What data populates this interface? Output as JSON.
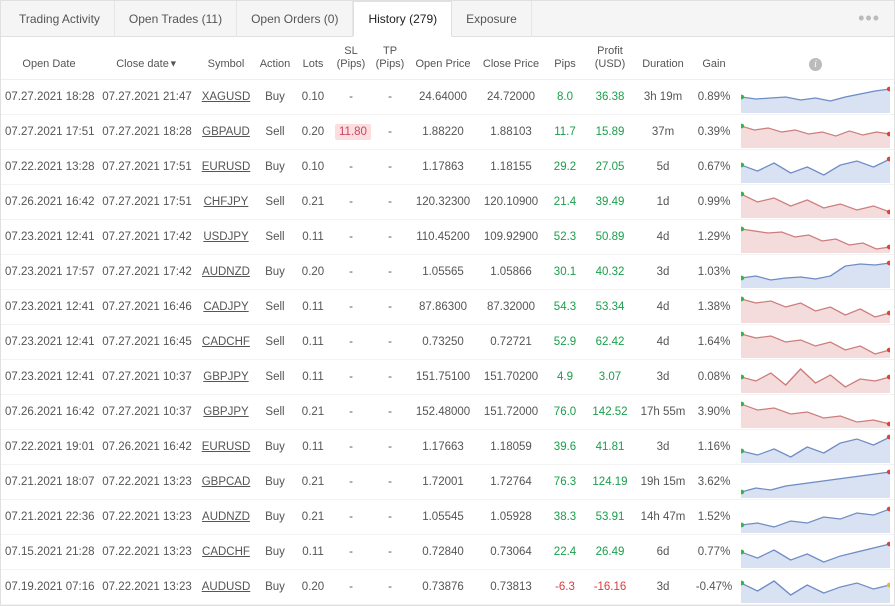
{
  "tabs": {
    "items": [
      {
        "label": "Trading Activity",
        "active": false
      },
      {
        "label": "Open Trades (11)",
        "active": false
      },
      {
        "label": "Open Orders (0)",
        "active": false
      },
      {
        "label": "History (279)",
        "active": true
      },
      {
        "label": "Exposure",
        "active": false
      }
    ]
  },
  "columns": {
    "open_date": "Open Date",
    "close_date": "Close date",
    "symbol": "Symbol",
    "action": "Action",
    "lots": "Lots",
    "sl": "SL\n(Pips)",
    "tp": "TP\n(Pips)",
    "open_price": "Open Price",
    "close_price": "Close Price",
    "pips": "Pips",
    "profit": "Profit\n(USD)",
    "duration": "Duration",
    "gain": "Gain",
    "sort_col": "close_date",
    "sort_dir": "desc"
  },
  "colors": {
    "positive": "#1a9e4b",
    "negative": "#d93c3c",
    "spark_buy_fill": "#d9e2f3",
    "spark_buy_stroke": "#6f8cc4",
    "spark_sell_fill": "#f5dcdc",
    "spark_sell_stroke": "#cc7d7d",
    "marker_open": "#35b54a",
    "marker_close": "#d8463a",
    "marker_close_neg": "#e0b54a",
    "sl_bad_bg": "#fcdede"
  },
  "rows": [
    {
      "open_date": "07.27.2021 18:28",
      "close_date": "07.27.2021 21:47",
      "symbol": "XAGUSD",
      "action": "Buy",
      "lots": "0.10",
      "sl": "-",
      "tp": "-",
      "open_price": "24.64000",
      "close_price": "24.72000",
      "pips": "8.0",
      "profit": "36.38",
      "duration": "3h 19m",
      "gain": "0.89%",
      "pips_pos": true,
      "profit_pos": true,
      "spark": [
        14,
        16,
        15,
        14,
        17,
        15,
        18,
        14,
        11,
        8,
        6
      ]
    },
    {
      "open_date": "07.27.2021 17:51",
      "close_date": "07.27.2021 18:28",
      "symbol": "GBPAUD",
      "action": "Sell",
      "lots": "0.20",
      "sl": "11.80",
      "sl_bad": true,
      "tp": "-",
      "open_price": "1.88220",
      "close_price": "1.88103",
      "pips": "11.7",
      "profit": "15.89",
      "duration": "37m",
      "gain": "0.39%",
      "pips_pos": true,
      "profit_pos": true,
      "spark": [
        8,
        12,
        10,
        14,
        12,
        16,
        14,
        18,
        13,
        17,
        14,
        16
      ]
    },
    {
      "open_date": "07.22.2021 13:28",
      "close_date": "07.27.2021 17:51",
      "symbol": "EURUSD",
      "action": "Buy",
      "lots": "0.10",
      "sl": "-",
      "tp": "-",
      "open_price": "1.17863",
      "close_price": "1.18155",
      "pips": "29.2",
      "profit": "27.05",
      "duration": "5d",
      "gain": "0.67%",
      "pips_pos": true,
      "profit_pos": true,
      "spark": [
        12,
        18,
        10,
        20,
        14,
        22,
        12,
        8,
        14,
        6
      ]
    },
    {
      "open_date": "07.26.2021 16:42",
      "close_date": "07.27.2021 17:51",
      "symbol": "CHFJPY",
      "action": "Sell",
      "lots": "0.21",
      "sl": "-",
      "tp": "-",
      "open_price": "120.32300",
      "close_price": "120.10900",
      "pips": "21.4",
      "profit": "39.49",
      "duration": "1d",
      "gain": "0.99%",
      "pips_pos": true,
      "profit_pos": true,
      "spark": [
        6,
        14,
        10,
        18,
        12,
        20,
        16,
        22,
        18,
        24
      ]
    },
    {
      "open_date": "07.23.2021 12:41",
      "close_date": "07.27.2021 17:42",
      "symbol": "USDJPY",
      "action": "Sell",
      "lots": "0.11",
      "sl": "-",
      "tp": "-",
      "open_price": "110.45200",
      "close_price": "109.92900",
      "pips": "52.3",
      "profit": "50.89",
      "duration": "4d",
      "gain": "1.29%",
      "pips_pos": true,
      "profit_pos": true,
      "spark": [
        6,
        8,
        10,
        9,
        14,
        12,
        18,
        16,
        22,
        20,
        26,
        24
      ]
    },
    {
      "open_date": "07.23.2021 17:57",
      "close_date": "07.27.2021 17:42",
      "symbol": "AUDNZD",
      "action": "Buy",
      "lots": "0.20",
      "sl": "-",
      "tp": "-",
      "open_price": "1.05565",
      "close_price": "1.05866",
      "pips": "30.1",
      "profit": "40.32",
      "duration": "3d",
      "gain": "1.03%",
      "pips_pos": true,
      "profit_pos": true,
      "spark": [
        20,
        18,
        22,
        20,
        19,
        21,
        18,
        8,
        6,
        7,
        5
      ]
    },
    {
      "open_date": "07.23.2021 12:41",
      "close_date": "07.27.2021 16:46",
      "symbol": "CADJPY",
      "action": "Sell",
      "lots": "0.11",
      "sl": "-",
      "tp": "-",
      "open_price": "87.86300",
      "close_price": "87.32000",
      "pips": "54.3",
      "profit": "53.34",
      "duration": "4d",
      "gain": "1.38%",
      "pips_pos": true,
      "profit_pos": true,
      "spark": [
        6,
        10,
        8,
        14,
        10,
        18,
        14,
        22,
        16,
        24,
        20
      ]
    },
    {
      "open_date": "07.23.2021 12:41",
      "close_date": "07.27.2021 16:45",
      "symbol": "CADCHF",
      "action": "Sell",
      "lots": "0.11",
      "sl": "-",
      "tp": "-",
      "open_price": "0.73250",
      "close_price": "0.72721",
      "pips": "52.9",
      "profit": "62.42",
      "duration": "4d",
      "gain": "1.64%",
      "pips_pos": true,
      "profit_pos": true,
      "spark": [
        6,
        10,
        8,
        14,
        12,
        18,
        14,
        22,
        18,
        26,
        22
      ]
    },
    {
      "open_date": "07.23.2021 12:41",
      "close_date": "07.27.2021 10:37",
      "symbol": "GBPJPY",
      "action": "Sell",
      "lots": "0.11",
      "sl": "-",
      "tp": "-",
      "open_price": "151.75100",
      "close_price": "151.70200",
      "pips": "4.9",
      "profit": "3.07",
      "duration": "3d",
      "gain": "0.08%",
      "pips_pos": true,
      "profit_pos": true,
      "spark": [
        14,
        18,
        10,
        22,
        6,
        20,
        12,
        24,
        16,
        18,
        14
      ]
    },
    {
      "open_date": "07.26.2021 16:42",
      "close_date": "07.27.2021 10:37",
      "symbol": "GBPJPY",
      "action": "Sell",
      "lots": "0.21",
      "sl": "-",
      "tp": "-",
      "open_price": "152.48000",
      "close_price": "151.72000",
      "pips": "76.0",
      "profit": "142.52",
      "duration": "17h 55m",
      "gain": "3.90%",
      "pips_pos": true,
      "profit_pos": true,
      "spark": [
        6,
        12,
        10,
        16,
        14,
        20,
        18,
        24,
        22,
        26
      ]
    },
    {
      "open_date": "07.22.2021 19:01",
      "close_date": "07.26.2021 16:42",
      "symbol": "EURUSD",
      "action": "Buy",
      "lots": "0.11",
      "sl": "-",
      "tp": "-",
      "open_price": "1.17663",
      "close_price": "1.18059",
      "pips": "39.6",
      "profit": "41.81",
      "duration": "3d",
      "gain": "1.16%",
      "pips_pos": true,
      "profit_pos": true,
      "spark": [
        18,
        22,
        16,
        24,
        14,
        20,
        10,
        6,
        12,
        4
      ]
    },
    {
      "open_date": "07.21.2021 18:07",
      "close_date": "07.22.2021 13:23",
      "symbol": "GBPCAD",
      "action": "Buy",
      "lots": "0.21",
      "sl": "-",
      "tp": "-",
      "open_price": "1.72001",
      "close_price": "1.72764",
      "pips": "76.3",
      "profit": "124.19",
      "duration": "19h 15m",
      "gain": "3.62%",
      "pips_pos": true,
      "profit_pos": true,
      "spark": [
        24,
        20,
        22,
        18,
        16,
        14,
        12,
        10,
        8,
        6,
        4
      ]
    },
    {
      "open_date": "07.21.2021 22:36",
      "close_date": "07.22.2021 13:23",
      "symbol": "AUDNZD",
      "action": "Buy",
      "lots": "0.21",
      "sl": "-",
      "tp": "-",
      "open_price": "1.05545",
      "close_price": "1.05928",
      "pips": "38.3",
      "profit": "53.91",
      "duration": "14h 47m",
      "gain": "1.52%",
      "pips_pos": true,
      "profit_pos": true,
      "spark": [
        22,
        20,
        24,
        18,
        20,
        14,
        16,
        10,
        12,
        6
      ]
    },
    {
      "open_date": "07.15.2021 21:28",
      "close_date": "07.22.2021 13:23",
      "symbol": "CADCHF",
      "action": "Buy",
      "lots": "0.11",
      "sl": "-",
      "tp": "-",
      "open_price": "0.72840",
      "close_price": "0.73064",
      "pips": "22.4",
      "profit": "26.49",
      "duration": "6d",
      "gain": "0.77%",
      "pips_pos": true,
      "profit_pos": true,
      "spark": [
        14,
        20,
        12,
        22,
        16,
        24,
        18,
        14,
        10,
        6
      ]
    },
    {
      "open_date": "07.19.2021 07:16",
      "close_date": "07.22.2021 13:23",
      "symbol": "AUDUSD",
      "action": "Buy",
      "lots": "0.20",
      "sl": "-",
      "tp": "-",
      "open_price": "0.73876",
      "close_price": "0.73813",
      "pips": "-6.3",
      "profit": "-16.16",
      "duration": "3d",
      "gain": "-0.47%",
      "pips_pos": false,
      "profit_pos": false,
      "spark": [
        10,
        18,
        8,
        22,
        12,
        20,
        14,
        10,
        16,
        12
      ]
    }
  ]
}
